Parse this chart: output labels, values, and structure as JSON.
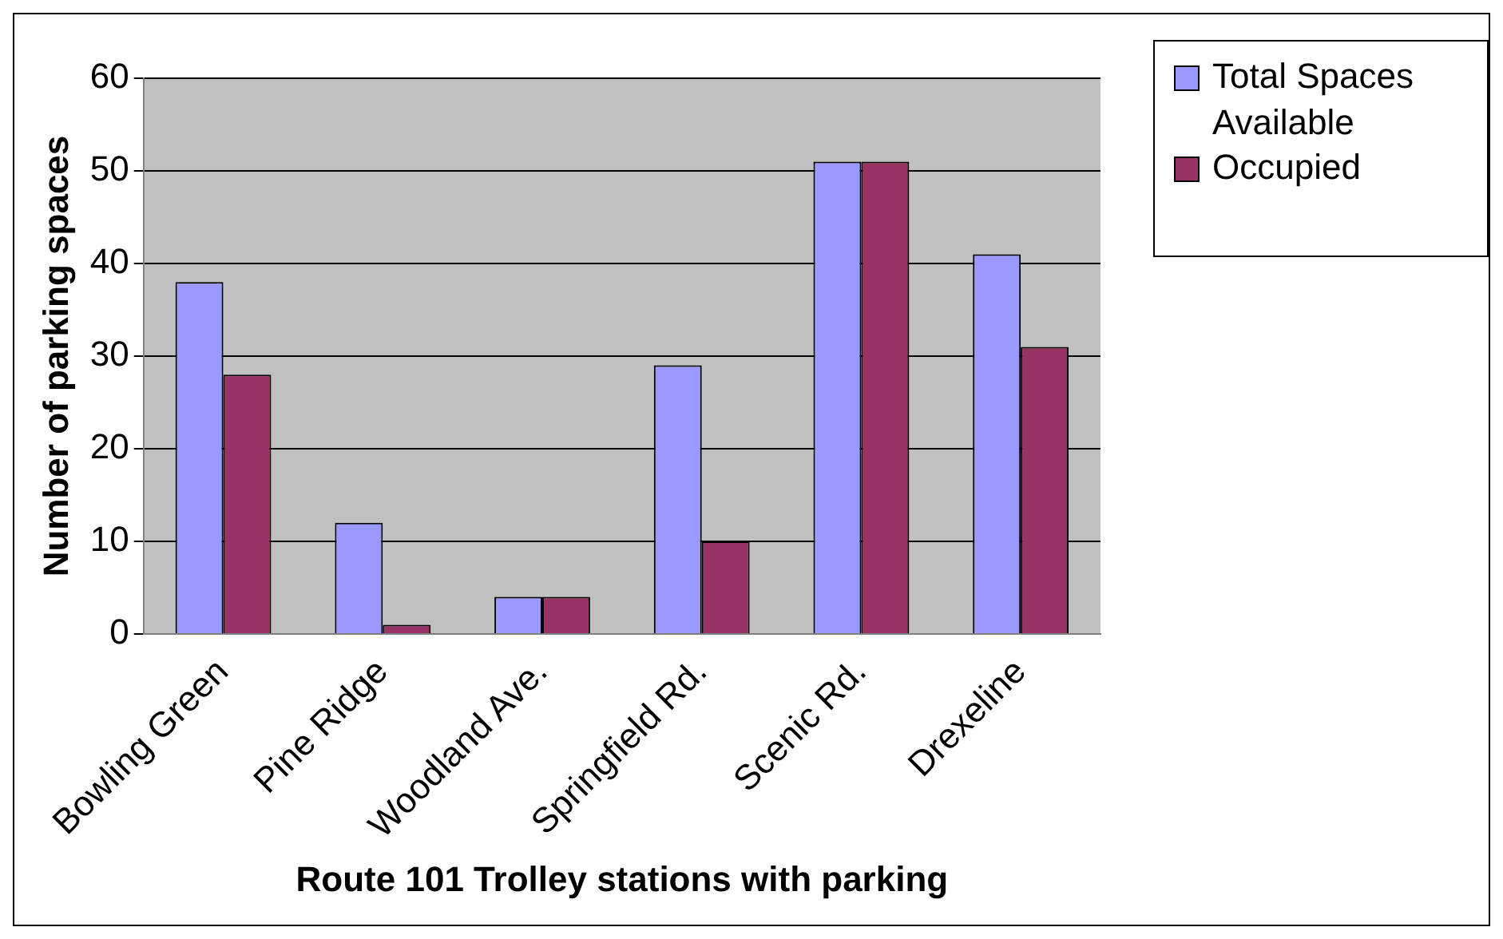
{
  "chart_data": {
    "type": "bar",
    "xlabel": "Route 101 Trolley stations with parking",
    "ylabel": "Number of parking spaces",
    "categories": [
      "Bowling Green",
      "Pine Ridge",
      "Woodland Ave.",
      "Springfield Rd.",
      "Scenic Rd.",
      "Drexeline"
    ],
    "series": [
      {
        "name": "Total Spaces Available",
        "color": "#9999ff",
        "values": [
          38,
          12,
          4,
          29,
          51,
          41
        ]
      },
      {
        "name": "Occupied",
        "color": "#993366",
        "values": [
          28,
          1,
          4,
          10,
          51,
          31
        ]
      }
    ],
    "ylim": [
      0,
      60
    ],
    "yticks": [
      0,
      10,
      20,
      30,
      40,
      50,
      60
    ],
    "grid": "y",
    "legend": "top right"
  }
}
